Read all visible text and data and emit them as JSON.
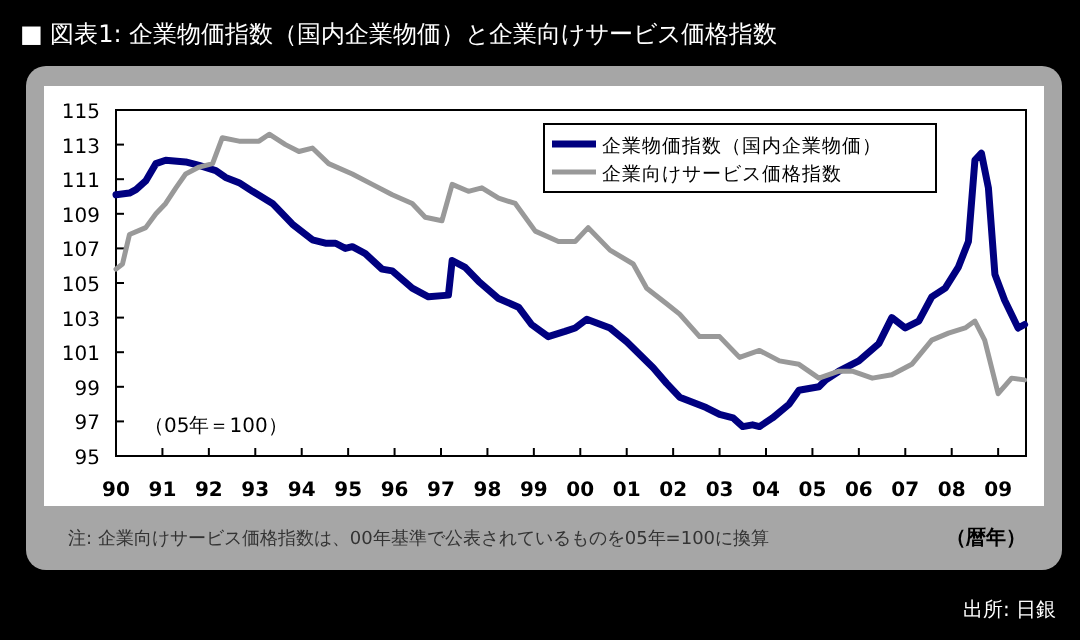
{
  "chart_data": {
    "type": "line",
    "title": "■ 図表1: 企業物価指数（国内企業物価）と企業向けサービス価格指数",
    "xlabel": "（暦年）",
    "annotations": [
      "（05年＝100）",
      "注: 企業向けサービス価格指数は、00年基準で公表されているものを05年=100に換算",
      "出所: 日銀"
    ],
    "xlim": [
      1990,
      2009.6
    ],
    "ylim": [
      95,
      115
    ],
    "xticks": [
      {
        "value": 1990,
        "label": "90"
      },
      {
        "value": 1991,
        "label": "91"
      },
      {
        "value": 1992,
        "label": "92"
      },
      {
        "value": 1993,
        "label": "93"
      },
      {
        "value": 1994,
        "label": "94"
      },
      {
        "value": 1995,
        "label": "95"
      },
      {
        "value": 1996,
        "label": "96"
      },
      {
        "value": 1997,
        "label": "97"
      },
      {
        "value": 1998,
        "label": "98"
      },
      {
        "value": 1999,
        "label": "99"
      },
      {
        "value": 2000,
        "label": "00"
      },
      {
        "value": 2001,
        "label": "01"
      },
      {
        "value": 2002,
        "label": "02"
      },
      {
        "value": 2003,
        "label": "03"
      },
      {
        "value": 2004,
        "label": "04"
      },
      {
        "value": 2005,
        "label": "05"
      },
      {
        "value": 2006,
        "label": "06"
      },
      {
        "value": 2007,
        "label": "07"
      },
      {
        "value": 2008,
        "label": "08"
      },
      {
        "value": 2009,
        "label": "09"
      }
    ],
    "yticks": [
      95,
      97,
      99,
      101,
      103,
      105,
      107,
      109,
      111,
      113,
      115
    ],
    "grid": false,
    "legend": "top right",
    "line_style": "solid",
    "series": [
      {
        "name": "企業物価指数（国内企業物価）",
        "color": "#000080",
        "x": [
          1990.0,
          1990.29,
          1990.43,
          1990.64,
          1990.86,
          1991.07,
          1991.5,
          1991.79,
          1992.15,
          1992.36,
          1992.65,
          1992.94,
          1993.37,
          1993.8,
          1994.23,
          1994.51,
          1994.73,
          1994.94,
          1995.09,
          1995.37,
          1995.73,
          1995.95,
          1996.38,
          1996.73,
          1997.16,
          1997.24,
          1997.52,
          1997.81,
          1998.24,
          1998.67,
          1998.95,
          1999.31,
          1999.67,
          1999.89,
          2000.14,
          2000.64,
          2001.0,
          2001.57,
          2001.86,
          2002.14,
          2002.71,
          2003.0,
          2003.29,
          2003.5,
          2003.71,
          2003.86,
          2004.14,
          2004.5,
          2004.71,
          2005.14,
          2005.29,
          2005.57,
          2006.0,
          2006.43,
          2006.71,
          2007.0,
          2007.29,
          2007.57,
          2007.86,
          2008.14,
          2008.36,
          2008.5,
          2008.64,
          2008.79,
          2008.93,
          2009.14,
          2009.43,
          2009.57
        ],
        "values": [
          110.1,
          110.2,
          110.4,
          110.9,
          111.9,
          112.1,
          112.0,
          111.8,
          111.5,
          111.1,
          110.8,
          110.3,
          109.6,
          108.4,
          107.5,
          107.3,
          107.3,
          107.0,
          107.1,
          106.7,
          105.8,
          105.7,
          104.7,
          104.2,
          104.3,
          106.3,
          105.9,
          105.1,
          104.1,
          103.6,
          102.6,
          101.9,
          102.2,
          102.4,
          102.9,
          102.4,
          101.6,
          100.1,
          99.2,
          98.4,
          97.8,
          97.4,
          97.2,
          96.7,
          96.8,
          96.7,
          97.2,
          98.0,
          98.8,
          99.0,
          99.4,
          99.9,
          100.5,
          101.5,
          103.0,
          102.4,
          102.8,
          104.2,
          104.7,
          105.9,
          107.4,
          112.1,
          112.5,
          110.5,
          105.5,
          104.0,
          102.4,
          102.6
        ]
      },
      {
        "name": "企業向けサービス価格指数",
        "color": "#999999",
        "x": [
          1990.0,
          1990.14,
          1990.29,
          1990.64,
          1990.86,
          1991.07,
          1991.29,
          1991.5,
          1991.79,
          1992.08,
          1992.29,
          1992.65,
          1993.08,
          1993.3,
          1993.65,
          1993.94,
          1994.23,
          1994.58,
          1995.09,
          1995.52,
          1995.95,
          1996.38,
          1996.66,
          1997.02,
          1997.24,
          1997.59,
          1997.88,
          1998.24,
          1998.6,
          1999.03,
          1999.53,
          1999.89,
          2000.17,
          2000.64,
          2001.14,
          2001.43,
          2001.86,
          2002.14,
          2002.57,
          2003.0,
          2003.43,
          2003.86,
          2004.29,
          2004.71,
          2005.14,
          2005.57,
          2005.86,
          2006.29,
          2006.71,
          2007.14,
          2007.57,
          2007.93,
          2008.29,
          2008.5,
          2008.71,
          2009.0,
          2009.29,
          2009.57
        ],
        "values": [
          105.8,
          106.1,
          107.8,
          108.2,
          109.0,
          109.6,
          110.5,
          111.3,
          111.7,
          111.9,
          113.4,
          113.2,
          113.2,
          113.6,
          113.0,
          112.6,
          112.8,
          111.9,
          111.3,
          110.7,
          110.1,
          109.6,
          108.8,
          108.6,
          110.7,
          110.3,
          110.5,
          109.9,
          109.6,
          108.0,
          107.4,
          107.4,
          108.2,
          106.9,
          106.1,
          104.7,
          103.8,
          103.2,
          101.9,
          101.9,
          100.7,
          101.1,
          100.5,
          100.3,
          99.5,
          99.9,
          99.9,
          99.5,
          99.7,
          100.3,
          101.7,
          102.1,
          102.4,
          102.8,
          101.7,
          98.6,
          99.5,
          99.4
        ]
      }
    ]
  }
}
